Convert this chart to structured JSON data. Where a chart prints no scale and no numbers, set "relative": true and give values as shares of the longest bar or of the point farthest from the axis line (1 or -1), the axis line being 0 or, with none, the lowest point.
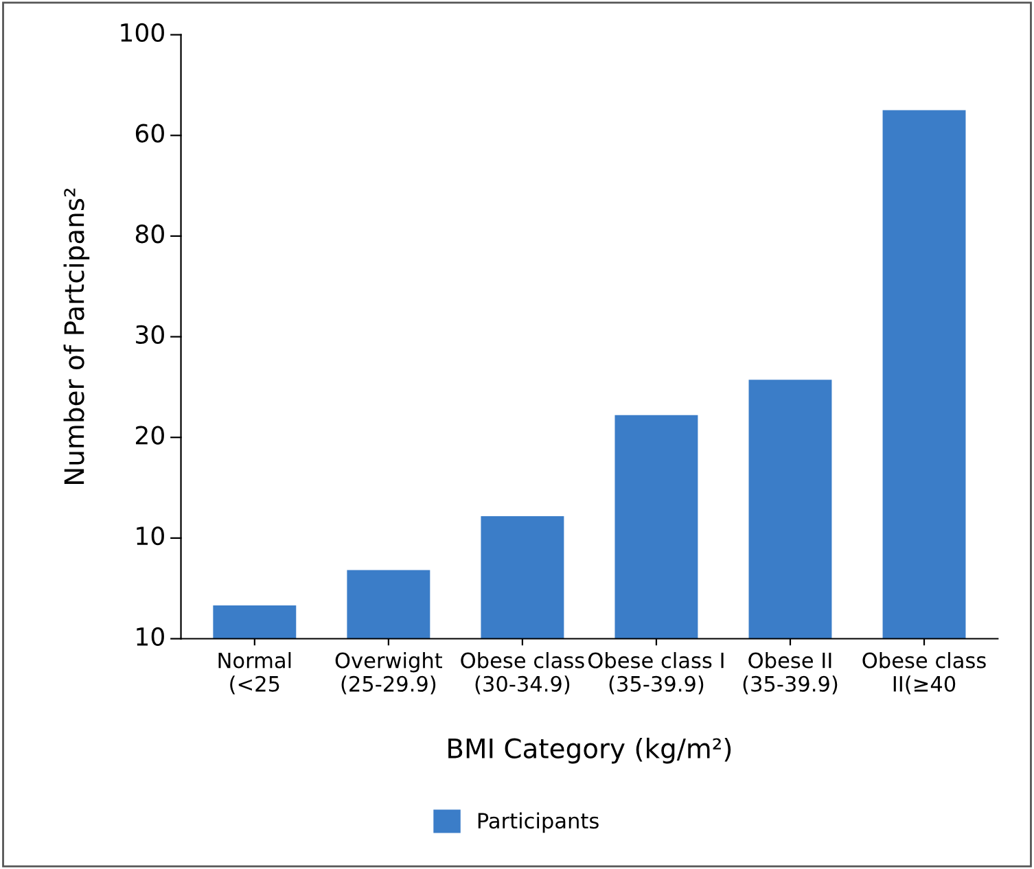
{
  "chart_data": {
    "type": "bar",
    "xlabel": "BMI Category (kg/m²)",
    "ylabel": "Number of Partcipans²",
    "categories": [
      "Normal\n(<25",
      "Overwight\n(25-29.9)",
      "Obese class\n(30-34.9)",
      "Obese class I\n(35-39.9)",
      "Obese II\n(35-39.9)",
      "Obese class\nII(≥40"
    ],
    "series": [
      {
        "name": "Participants",
        "color": "#3b7dc8",
        "values": [
          0.063,
          0.13,
          0.232,
          0.423,
          0.49,
          1
        ]
      }
    ],
    "relative": true,
    "annotations": [
      "10",
      "10",
      "20",
      "30",
      "80",
      "60",
      "100"
    ],
    "grid": false,
    "legend": "bottom"
  }
}
